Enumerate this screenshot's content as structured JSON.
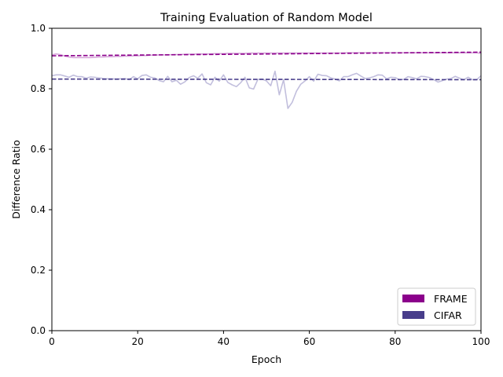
{
  "chart_data": {
    "type": "line",
    "title": "Training Evaluation of Random Model",
    "xlabel": "Epoch",
    "ylabel": "Difference Ratio",
    "xlim": [
      0,
      100
    ],
    "ylim": [
      0.0,
      1.0
    ],
    "xticks": [
      "0",
      "20",
      "40",
      "60",
      "80",
      "100"
    ],
    "yticks": [
      "0.0",
      "0.2",
      "0.4",
      "0.6",
      "0.8",
      "1.0"
    ],
    "legend_position": "bottom-right",
    "legend": [
      {
        "label": "FRAME",
        "color": "#8b008b"
      },
      {
        "label": "CIFAR",
        "color": "#483d8b"
      }
    ],
    "series": [
      {
        "name": "FRAME",
        "color": "#8b008b",
        "raw_color": "#d7a6da",
        "trend": [
          0.909,
          0.921
        ],
        "x": [
          0,
          1,
          2,
          3,
          4,
          5,
          6,
          7,
          8,
          9,
          10,
          11,
          12,
          13,
          14,
          15,
          16,
          17,
          18,
          19,
          20,
          21,
          22,
          23,
          24,
          25,
          26,
          27,
          28,
          29,
          30,
          31,
          32,
          33,
          34,
          35,
          36,
          37,
          38,
          39,
          40,
          41,
          42,
          43,
          44,
          45,
          46,
          47,
          48,
          49,
          50,
          51,
          52,
          53,
          54,
          55,
          56,
          57,
          58,
          59,
          60,
          61,
          62,
          63,
          64,
          65,
          66,
          67,
          68,
          69,
          70,
          71,
          72,
          73,
          74,
          75,
          76,
          77,
          78,
          79,
          80,
          81,
          82,
          83,
          84,
          85,
          86,
          87,
          88,
          89,
          90,
          91,
          92,
          93,
          94,
          95,
          96,
          97,
          98,
          99,
          100
        ],
        "values": [
          0.912,
          0.915,
          0.913,
          0.908,
          0.905,
          0.903,
          0.903,
          0.903,
          0.903,
          0.903,
          0.904,
          0.905,
          0.905,
          0.906,
          0.906,
          0.907,
          0.907,
          0.908,
          0.908,
          0.909,
          0.909,
          0.91,
          0.91,
          0.911,
          0.911,
          0.912,
          0.912,
          0.912,
          0.913,
          0.913,
          0.913,
          0.914,
          0.914,
          0.914,
          0.915,
          0.915,
          0.915,
          0.915,
          0.916,
          0.916,
          0.916,
          0.917,
          0.917,
          0.917,
          0.917,
          0.917,
          0.918,
          0.918,
          0.918,
          0.918,
          0.918,
          0.918,
          0.918,
          0.918,
          0.918,
          0.918,
          0.918,
          0.918,
          0.918,
          0.918,
          0.918,
          0.918,
          0.918,
          0.918,
          0.918,
          0.918,
          0.918,
          0.918,
          0.918,
          0.919,
          0.919,
          0.919,
          0.919,
          0.919,
          0.919,
          0.919,
          0.919,
          0.919,
          0.919,
          0.919,
          0.919,
          0.919,
          0.919,
          0.919,
          0.919,
          0.919,
          0.919,
          0.919,
          0.919,
          0.919,
          0.919,
          0.919,
          0.919,
          0.919,
          0.919,
          0.919,
          0.919,
          0.919,
          0.919,
          0.919,
          0.917
        ]
      },
      {
        "name": "CIFAR",
        "color": "#483d8b",
        "raw_color": "#c2bfdd",
        "trend": [
          0.832,
          0.83
        ],
        "x": [
          0,
          1,
          2,
          3,
          4,
          5,
          6,
          7,
          8,
          9,
          10,
          11,
          12,
          13,
          14,
          15,
          16,
          17,
          18,
          19,
          20,
          21,
          22,
          23,
          24,
          25,
          26,
          27,
          28,
          29,
          30,
          31,
          32,
          33,
          34,
          35,
          36,
          37,
          38,
          39,
          40,
          41,
          42,
          43,
          44,
          45,
          46,
          47,
          48,
          49,
          50,
          51,
          52,
          53,
          54,
          55,
          56,
          57,
          58,
          59,
          60,
          61,
          62,
          63,
          64,
          65,
          66,
          67,
          68,
          69,
          70,
          71,
          72,
          73,
          74,
          75,
          76,
          77,
          78,
          79,
          80,
          81,
          82,
          83,
          84,
          85,
          86,
          87,
          88,
          89,
          90,
          91,
          92,
          93,
          94,
          95,
          96,
          97,
          98,
          99,
          100
        ],
        "values": [
          0.843,
          0.846,
          0.846,
          0.842,
          0.838,
          0.845,
          0.84,
          0.84,
          0.835,
          0.839,
          0.838,
          0.836,
          0.834,
          0.833,
          0.833,
          0.832,
          0.833,
          0.834,
          0.83,
          0.84,
          0.833,
          0.844,
          0.846,
          0.838,
          0.836,
          0.827,
          0.823,
          0.841,
          0.823,
          0.828,
          0.815,
          0.823,
          0.837,
          0.843,
          0.835,
          0.849,
          0.82,
          0.813,
          0.838,
          0.825,
          0.846,
          0.821,
          0.813,
          0.807,
          0.82,
          0.838,
          0.803,
          0.799,
          0.831,
          0.832,
          0.826,
          0.81,
          0.858,
          0.78,
          0.83,
          0.735,
          0.755,
          0.792,
          0.815,
          0.826,
          0.84,
          0.825,
          0.848,
          0.844,
          0.843,
          0.836,
          0.832,
          0.826,
          0.84,
          0.84,
          0.846,
          0.851,
          0.842,
          0.834,
          0.836,
          0.84,
          0.846,
          0.845,
          0.833,
          0.838,
          0.837,
          0.83,
          0.831,
          0.84,
          0.837,
          0.833,
          0.841,
          0.84,
          0.837,
          0.83,
          0.822,
          0.827,
          0.832,
          0.834,
          0.841,
          0.835,
          0.83,
          0.838,
          0.83,
          0.83,
          0.843
        ]
      }
    ]
  }
}
